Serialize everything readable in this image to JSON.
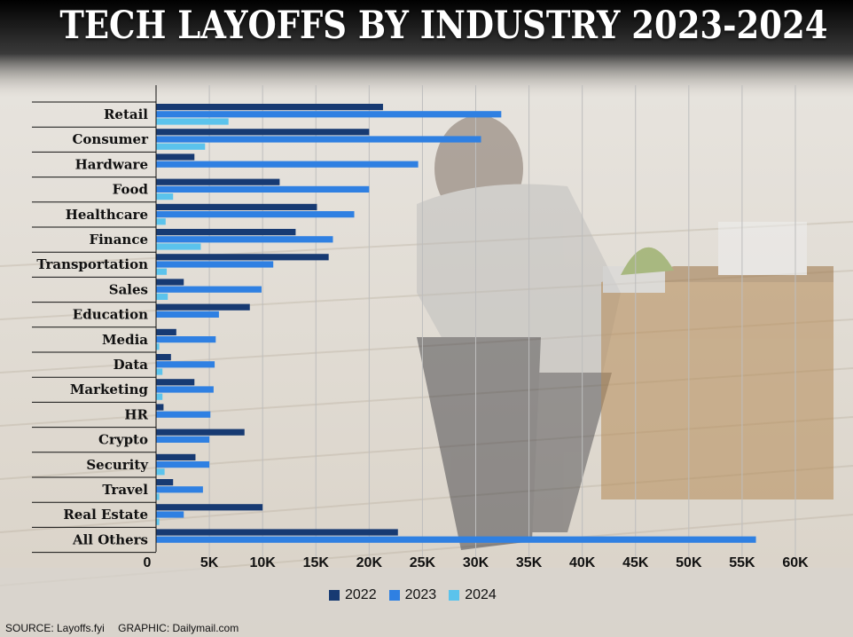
{
  "title": "TECH LAYOFFS BY INDUSTRY 2023-2024",
  "footer": {
    "source": "SOURCE: Layoffs.fyi",
    "graphic": "GRAPHIC: Dailymail.com"
  },
  "colors": {
    "s2022": "#173a72",
    "s2023": "#2f80e2",
    "s2024": "#5bc3ec"
  },
  "chart_data": {
    "type": "bar",
    "orientation": "horizontal",
    "categories": [
      "Retail",
      "Consumer",
      "Hardware",
      "Food",
      "Healthcare",
      "Finance",
      "Transportation",
      "Sales",
      "Education",
      "Media",
      "Data",
      "Marketing",
      "HR",
      "Crypto",
      "Security",
      "Travel",
      "Real Estate",
      "All Others"
    ],
    "series": [
      {
        "name": "2022",
        "values": [
          21300,
          20000,
          3600,
          11600,
          15100,
          13100,
          16200,
          2600,
          8800,
          1900,
          1400,
          3600,
          700,
          8300,
          3700,
          1600,
          10000,
          22700
        ]
      },
      {
        "name": "2023",
        "values": [
          32400,
          30500,
          24600,
          20000,
          18600,
          16600,
          11000,
          9900,
          5900,
          5600,
          5500,
          5400,
          5100,
          5000,
          5000,
          4400,
          2600,
          56300
        ]
      },
      {
        "name": "2024",
        "values": [
          6800,
          4600,
          0,
          1600,
          900,
          4200,
          1000,
          1100,
          0,
          300,
          600,
          600,
          0,
          0,
          800,
          300,
          300,
          0
        ]
      }
    ],
    "xlim": [
      0,
      60000
    ],
    "x_ticks": [
      0,
      5000,
      10000,
      15000,
      20000,
      25000,
      30000,
      35000,
      40000,
      45000,
      50000,
      55000,
      60000
    ],
    "x_tick_labels": [
      "0",
      "5K",
      "10K",
      "15K",
      "20K",
      "25K",
      "30K",
      "35K",
      "40K",
      "45K",
      "50K",
      "55K",
      "60K"
    ],
    "grid": true,
    "legend": "bottom-center"
  }
}
